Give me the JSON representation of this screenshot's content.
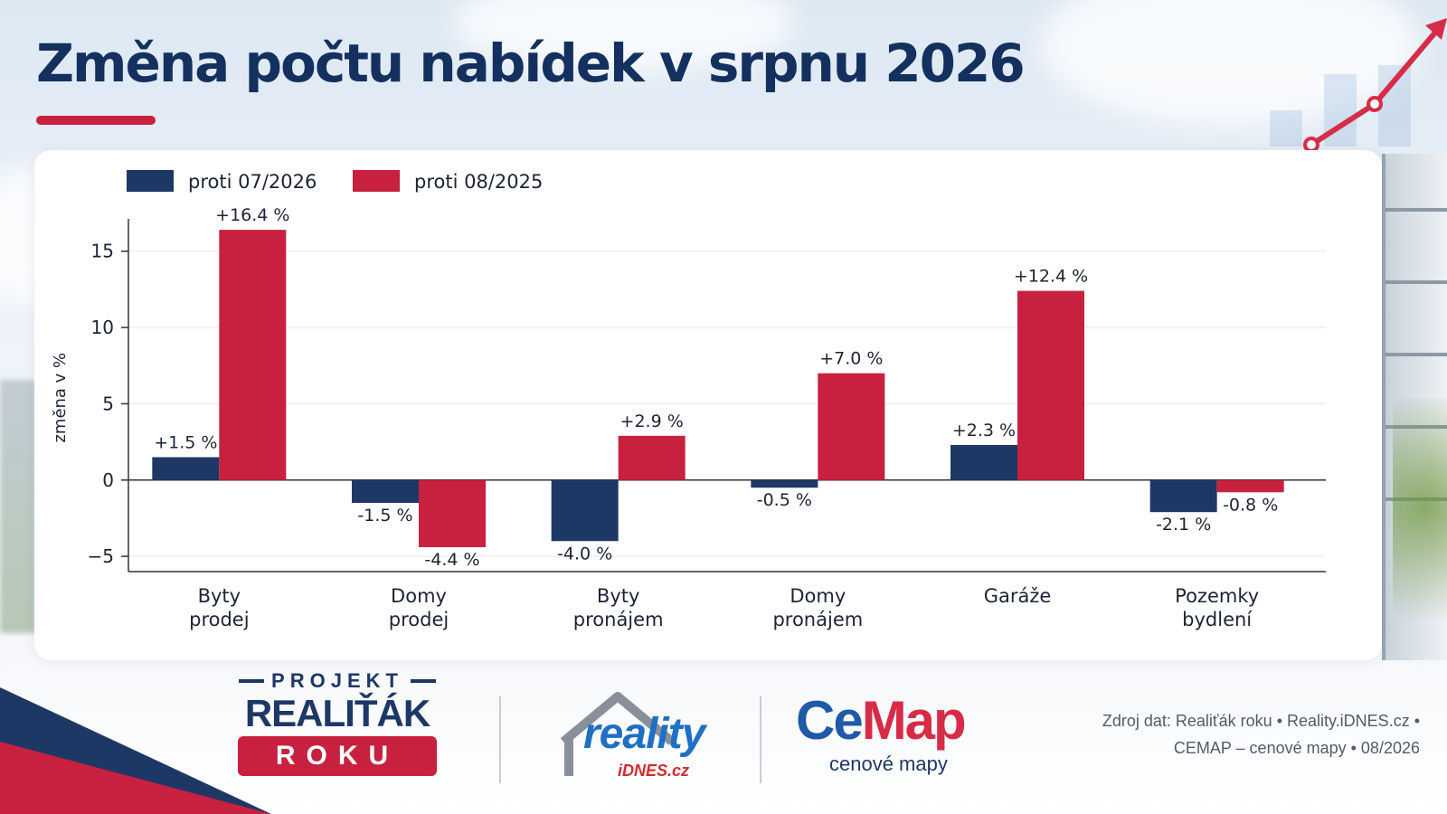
{
  "title": "Změna počtu nabídek v srpnu 2026",
  "chart_data": {
    "type": "bar",
    "categories": [
      [
        "Byty",
        "prodej"
      ],
      [
        "Domy",
        "prodej"
      ],
      [
        "Byty",
        "pronájem"
      ],
      [
        "Domy",
        "pronájem"
      ],
      [
        "Garáže"
      ],
      [
        "Pozemky",
        "bydlení"
      ]
    ],
    "series": [
      {
        "name": "proti 07/2026",
        "color": "#1e3866",
        "values": [
          1.5,
          -1.5,
          -4.0,
          -0.5,
          2.3,
          -2.1
        ],
        "labels": [
          "+1.5 %",
          "-1.5 %",
          "-4.0 %",
          "-0.5 %",
          "+2.3 %",
          "-2.1 %"
        ]
      },
      {
        "name": "proti 08/2025",
        "color": "#c8203f",
        "values": [
          16.4,
          -4.4,
          2.9,
          7.0,
          12.4,
          -0.8
        ],
        "labels": [
          "+16.4 %",
          "-4.4 %",
          "+2.9 %",
          "+7.0 %",
          "+12.4 %",
          "-0.8 %"
        ]
      }
    ],
    "ylabel": "změna v %",
    "ylim": [
      -6,
      17
    ],
    "yticks": [
      -5,
      0,
      5,
      10,
      15
    ],
    "ytick_labels": [
      "−5",
      "0",
      "5",
      "10",
      "15"
    ],
    "grid": true,
    "legend": "top-left"
  },
  "footer": {
    "projekt": "PROJEKT",
    "realitak": "REALIŤÁK",
    "roku": "ROKU",
    "reality": "reality",
    "idnes": "iDNES.cz",
    "cemap_ce": "Ce",
    "cemap_map": "Map",
    "cemap_sub": "cenové mapy",
    "source_line1": "Zdroj dat: Realiťák roku  •  Reality.iDNES.cz  •",
    "source_line2": "CEMAP – cenové mapy  •  08/2026"
  },
  "colors": {
    "navy": "#1e3866",
    "red": "#c8203f",
    "title": "#13305e"
  }
}
